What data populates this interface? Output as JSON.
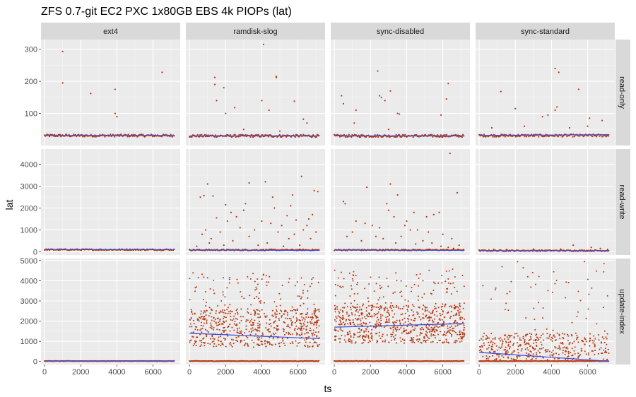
{
  "chart_data": {
    "type": "scatter",
    "title": "ZFS 0.7-git EC2 PXC 1x80GB EBS 4k PIOPs (lat)",
    "xlabel": "ts",
    "ylabel": "lat",
    "columns": [
      "ext4",
      "ramdisk-slog",
      "sync-disabled",
      "sync-standard"
    ],
    "rows": [
      {
        "name": "read-only",
        "ylim": [
          0,
          330
        ],
        "yticks": [
          100,
          200,
          300
        ]
      },
      {
        "name": "read-write",
        "ylim": [
          -150,
          4700
        ],
        "yticks": [
          0,
          1000,
          2000,
          3000,
          4000
        ]
      },
      {
        "name": "update-index",
        "ylim": [
          -150,
          5100
        ],
        "yticks": [
          0,
          1000,
          2000,
          3000,
          4000,
          5000
        ]
      }
    ],
    "xlim": [
      -200,
      7500
    ],
    "xticks": [
      0,
      2000,
      4000,
      6000
    ],
    "grid": true,
    "point_color": "#b5360f",
    "trend_color": "#3b4bdb",
    "panel_bg": "#ebebeb",
    "strip_bg": "#d9d9d9",
    "trend_lines": [
      [
        [
          0,
          31
        ],
        [
          7200,
          31
        ]
      ],
      [
        [
          0,
          30
        ],
        [
          7200,
          30
        ]
      ],
      [
        [
          0,
          30
        ],
        [
          7200,
          30
        ]
      ],
      [
        [
          0,
          31
        ],
        [
          7200,
          34
        ]
      ],
      [
        [
          0,
          95
        ],
        [
          7200,
          95
        ]
      ],
      [
        [
          0,
          80
        ],
        [
          7200,
          60
        ]
      ],
      [
        [
          0,
          80
        ],
        [
          7200,
          60
        ]
      ],
      [
        [
          0,
          50
        ],
        [
          7200,
          50
        ]
      ],
      [
        [
          0,
          30
        ],
        [
          7200,
          30
        ]
      ],
      [
        [
          0,
          1400
        ],
        [
          7200,
          1130
        ]
      ],
      [
        [
          0,
          1700
        ],
        [
          7200,
          1880
        ]
      ],
      [
        [
          0,
          450
        ],
        [
          7200,
          10
        ]
      ]
    ],
    "outliers": [
      [
        [
          1000,
          293
        ],
        [
          1000,
          195
        ],
        [
          2550,
          162
        ],
        [
          3900,
          175
        ],
        [
          3900,
          100
        ],
        [
          4000,
          90
        ],
        [
          6500,
          228
        ]
      ],
      [
        [
          1400,
          212
        ],
        [
          1400,
          190
        ],
        [
          1900,
          180
        ],
        [
          1500,
          140
        ],
        [
          2000,
          100
        ],
        [
          2500,
          118
        ],
        [
          4100,
          315
        ],
        [
          4800,
          215
        ],
        [
          4800,
          212
        ],
        [
          4000,
          140
        ],
        [
          4400,
          110
        ],
        [
          5800,
          138
        ],
        [
          6300,
          82
        ],
        [
          6500,
          70
        ],
        [
          3000,
          50
        ],
        [
          5000,
          45
        ]
      ],
      [
        [
          2400,
          232
        ],
        [
          2500,
          155
        ],
        [
          2600,
          150
        ],
        [
          3100,
          170
        ],
        [
          2800,
          140
        ],
        [
          400,
          155
        ],
        [
          500,
          130
        ],
        [
          1200,
          110
        ],
        [
          3500,
          100
        ],
        [
          3600,
          98
        ],
        [
          5900,
          95
        ],
        [
          6300,
          193
        ],
        [
          6200,
          145
        ],
        [
          1100,
          70
        ],
        [
          3000,
          50
        ]
      ],
      [
        [
          4200,
          240
        ],
        [
          4400,
          228
        ],
        [
          4300,
          120
        ],
        [
          4200,
          110
        ],
        [
          5500,
          175
        ],
        [
          1200,
          168
        ],
        [
          2000,
          115
        ],
        [
          6100,
          85
        ],
        [
          6800,
          78
        ],
        [
          3500,
          90
        ],
        [
          3800,
          95
        ],
        [
          5000,
          55
        ],
        [
          700,
          55
        ],
        [
          2500,
          60
        ],
        [
          6000,
          60
        ]
      ],
      [],
      [
        [
          600,
          2500
        ],
        [
          800,
          2570
        ],
        [
          1000,
          3100
        ],
        [
          1300,
          2550
        ],
        [
          3300,
          3150
        ],
        [
          4200,
          3200
        ],
        [
          6200,
          3450
        ],
        [
          6900,
          2800
        ],
        [
          7100,
          2750
        ],
        [
          2000,
          2150
        ],
        [
          3100,
          2200
        ],
        [
          4700,
          2000
        ],
        [
          5600,
          2100
        ],
        [
          5400,
          1650
        ],
        [
          2300,
          1800
        ],
        [
          2600,
          1600
        ],
        [
          1500,
          1550
        ],
        [
          4000,
          1400
        ],
        [
          4500,
          1300
        ],
        [
          5900,
          1450
        ],
        [
          6600,
          1500
        ],
        [
          6800,
          1700
        ],
        [
          900,
          1000
        ],
        [
          1700,
          900
        ],
        [
          2800,
          1100
        ],
        [
          3600,
          1000
        ],
        [
          5100,
          1200
        ],
        [
          6300,
          1000
        ],
        [
          7000,
          900
        ],
        [
          1200,
          600
        ],
        [
          2400,
          500
        ],
        [
          3300,
          700
        ],
        [
          4300,
          400
        ],
        [
          5500,
          600
        ],
        [
          6100,
          300
        ],
        [
          6700,
          600
        ],
        [
          1900,
          300
        ],
        [
          3800,
          300
        ],
        [
          5200,
          250
        ],
        [
          700,
          800
        ],
        [
          1100,
          400
        ],
        [
          2100,
          1400
        ],
        [
          3000,
          1900
        ],
        [
          4900,
          900
        ],
        [
          5800,
          800
        ],
        [
          6500,
          1200
        ],
        [
          400,
          250
        ],
        [
          4600,
          2500
        ],
        [
          5700,
          2600
        ]
      ],
      [
        [
          500,
          2300
        ],
        [
          600,
          2200
        ],
        [
          1800,
          2950
        ],
        [
          3100,
          3100
        ],
        [
          3500,
          2600
        ],
        [
          6400,
          4500
        ],
        [
          6800,
          2700
        ],
        [
          2900,
          2200
        ],
        [
          3000,
          1900
        ],
        [
          3300,
          1600
        ],
        [
          5100,
          1600
        ],
        [
          5500,
          1700
        ],
        [
          5800,
          1800
        ],
        [
          4400,
          1800
        ],
        [
          4000,
          1400
        ],
        [
          1200,
          1400
        ],
        [
          2100,
          1200
        ],
        [
          2500,
          1100
        ],
        [
          4200,
          1000
        ],
        [
          4600,
          1000
        ],
        [
          5200,
          900
        ],
        [
          6000,
          800
        ],
        [
          6500,
          600
        ],
        [
          1500,
          500
        ],
        [
          3700,
          700
        ],
        [
          2300,
          700
        ],
        [
          4900,
          500
        ],
        [
          5400,
          400
        ],
        [
          6900,
          300
        ],
        [
          1000,
          900
        ],
        [
          1700,
          1300
        ],
        [
          3900,
          1200
        ],
        [
          2700,
          600
        ],
        [
          4500,
          350
        ],
        [
          5900,
          250
        ],
        [
          6300,
          200
        ],
        [
          6600,
          150
        ],
        [
          700,
          700
        ],
        [
          3400,
          400
        ]
      ],
      [
        [
          5200,
          300
        ],
        [
          6200,
          200
        ],
        [
          7100,
          100
        ],
        [
          3000,
          120
        ],
        [
          1500,
          100
        ],
        [
          4500,
          120
        ],
        [
          800,
          110
        ],
        [
          6700,
          150
        ]
      ],
      [],
      [],
      [],
      []
    ],
    "dense_clouds": [
      null,
      null,
      null,
      null,
      null,
      null,
      null,
      null,
      null,
      {
        "ymin": 700,
        "ymax": 2600,
        "sparse_max": 4400,
        "count": 700
      },
      {
        "ymin": 900,
        "ymax": 2800,
        "sparse_max": 4600,
        "count": 800
      },
      {
        "ymin": 50,
        "ymax": 1400,
        "sparse_max": 5000,
        "count": 450
      }
    ]
  }
}
